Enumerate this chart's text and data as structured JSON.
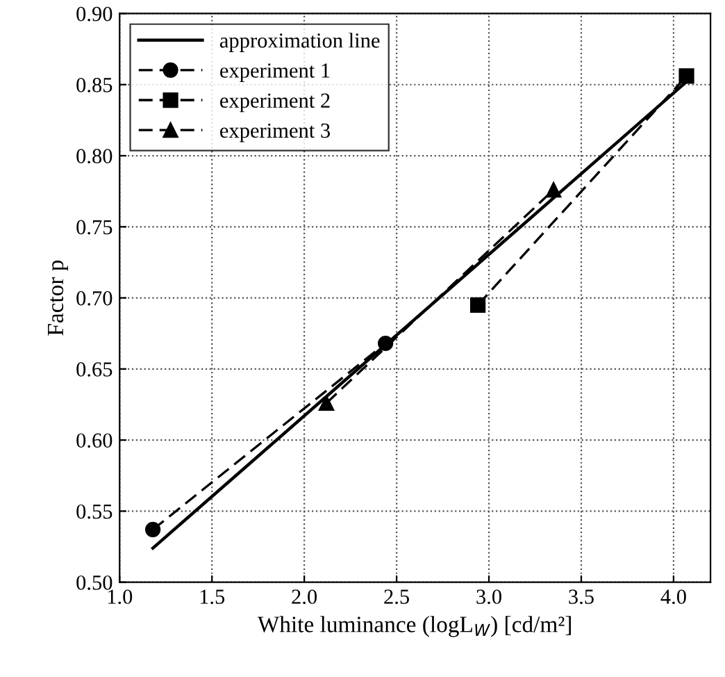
{
  "chart_data": {
    "type": "line",
    "xlabel": "White luminance (logL$_{W}$) [cd/m²]",
    "ylabel": "Factor p",
    "xlim": [
      1.0,
      4.2
    ],
    "ylim": [
      0.5,
      0.9
    ],
    "xticks": [
      {
        "value": 1.0,
        "label": "1.0"
      },
      1.5,
      {
        "value": 2.0,
        "label": "2.0"
      },
      2.5,
      {
        "value": 3.0,
        "label": "3.0"
      },
      3.5,
      {
        "value": 4.0,
        "label": "4.0"
      }
    ],
    "yticks": [
      {
        "value": 0.5,
        "label": "0.50"
      },
      0.55,
      {
        "value": 0.6,
        "label": "0.60"
      },
      0.65,
      {
        "value": 0.7,
        "label": "0.70"
      },
      0.75,
      {
        "value": 0.8,
        "label": "0.80"
      },
      0.85,
      {
        "value": 0.9,
        "label": "0.90"
      }
    ],
    "grid": true,
    "legend": "top left",
    "series": [
      {
        "name": "approximation line",
        "color": "#000000",
        "x": [
          1.18,
          4.07
        ],
        "values": [
          0.524,
          0.852
        ],
        "line_style": "solid",
        "marker": "none"
      },
      {
        "name": "experiment 1",
        "color": "#000000",
        "x": [
          1.18,
          2.44
        ],
        "values": [
          0.537,
          0.668
        ],
        "line_style": "dashed",
        "marker": "circle"
      },
      {
        "name": "experiment 2",
        "color": "#000000",
        "x": [
          2.94,
          4.07
        ],
        "values": [
          0.695,
          0.856
        ],
        "line_style": "dashed",
        "marker": "square"
      },
      {
        "name": "experiment 3",
        "color": "#000000",
        "x": [
          2.12,
          3.35
        ],
        "values": [
          0.626,
          0.776
        ],
        "line_style": "dashed",
        "marker": "triangle"
      }
    ]
  }
}
